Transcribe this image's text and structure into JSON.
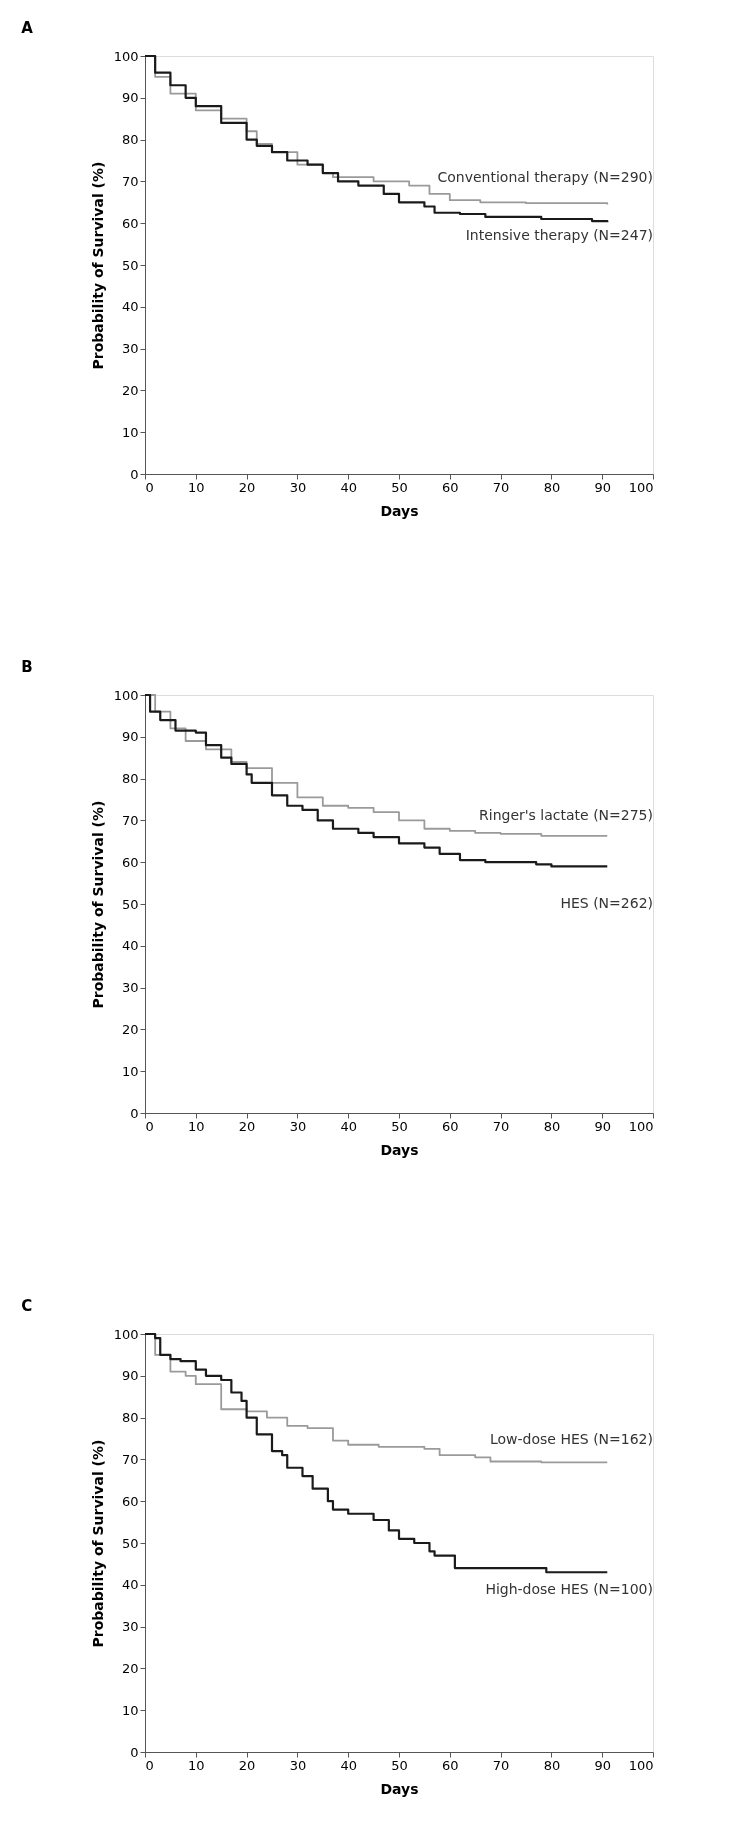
{
  "chart_data": [
    {
      "type": "step",
      "title": "A",
      "xlabel": "Days",
      "ylabel": "Probability of Survival (%)",
      "xlim": [
        0,
        100
      ],
      "ylim": [
        0,
        100
      ],
      "xticks": [
        0,
        10,
        20,
        30,
        40,
        50,
        60,
        70,
        80,
        90,
        100
      ],
      "yticks": [
        0,
        10,
        20,
        30,
        40,
        50,
        60,
        70,
        80,
        90,
        100
      ],
      "grid": false,
      "series": [
        {
          "name": "Conventional therapy (N=290)",
          "color": "#9a9a9a",
          "x": [
            0,
            2,
            5,
            10,
            15,
            20,
            22,
            25,
            30,
            35,
            37,
            45,
            52,
            56,
            60,
            66,
            75,
            91
          ],
          "values": [
            100,
            95,
            91,
            87,
            85,
            82,
            79,
            77,
            74,
            72,
            71,
            70,
            69,
            67,
            65.5,
            65,
            64.8,
            64.5
          ]
        },
        {
          "name": "Intensive therapy (N=247)",
          "color": "#1a1a1a",
          "x": [
            0,
            2,
            5,
            8,
            10,
            15,
            20,
            22,
            25,
            28,
            32,
            35,
            38,
            42,
            47,
            50,
            55,
            57,
            62,
            67,
            78,
            88,
            91
          ],
          "values": [
            100,
            96,
            93,
            90,
            88,
            84,
            80,
            78.5,
            77,
            75,
            74,
            72,
            70,
            69,
            67,
            65,
            64,
            62.5,
            62.2,
            61.5,
            61,
            60.5,
            60.2
          ]
        }
      ]
    },
    {
      "type": "step",
      "title": "B",
      "xlabel": "Days",
      "ylabel": "Probability of Survival (%)",
      "xlim": [
        0,
        100
      ],
      "ylim": [
        0,
        100
      ],
      "xticks": [
        0,
        10,
        20,
        30,
        40,
        50,
        60,
        70,
        80,
        90,
        100
      ],
      "yticks": [
        0,
        10,
        20,
        30,
        40,
        50,
        60,
        70,
        80,
        90,
        100
      ],
      "grid": false,
      "series": [
        {
          "name": "Ringer's lactate (N=275)",
          "color": "#9a9a9a",
          "x": [
            0,
            2,
            5,
            8,
            12,
            17,
            20,
            25,
            30,
            35,
            40,
            45,
            50,
            55,
            60,
            65,
            70,
            78,
            91
          ],
          "values": [
            100,
            96,
            92,
            89,
            87,
            84,
            82.5,
            79,
            75.5,
            73.5,
            73,
            72,
            70,
            68,
            67.5,
            67,
            66.8,
            66.3,
            66.3
          ]
        },
        {
          "name": "HES (N=262)",
          "color": "#1a1a1a",
          "x": [
            0,
            1,
            3,
            6,
            10,
            12,
            15,
            17,
            20,
            21,
            25,
            28,
            31,
            34,
            37,
            42,
            45,
            50,
            55,
            58,
            62,
            67,
            77,
            80,
            91
          ],
          "values": [
            100,
            96,
            94,
            91.5,
            91,
            88,
            85,
            83.5,
            81,
            79,
            76,
            73.5,
            72.5,
            70,
            68,
            67,
            66,
            64.5,
            63.5,
            62,
            60.5,
            60,
            59.5,
            59,
            59
          ]
        }
      ]
    },
    {
      "type": "step",
      "title": "C",
      "xlabel": "Days",
      "ylabel": "Probability of Survival (%)",
      "xlim": [
        0,
        100
      ],
      "ylim": [
        0,
        100
      ],
      "xticks": [
        0,
        10,
        20,
        30,
        40,
        50,
        60,
        70,
        80,
        90,
        100
      ],
      "yticks": [
        0,
        10,
        20,
        30,
        40,
        50,
        60,
        70,
        80,
        90,
        100
      ],
      "grid": false,
      "series": [
        {
          "name": "Low-dose HES (N=162)",
          "color": "#9a9a9a",
          "x": [
            0,
            2,
            5,
            8,
            10,
            15,
            20,
            24,
            28,
            32,
            37,
            40,
            46,
            55,
            58,
            65,
            68,
            78,
            91
          ],
          "values": [
            100,
            95,
            91,
            90,
            88,
            82,
            81.5,
            80,
            78,
            77.5,
            74.5,
            73.5,
            73,
            72.5,
            71,
            70.5,
            69.5,
            69.3,
            69.3
          ]
        },
        {
          "name": "High-dose HES (N=100)",
          "color": "#1a1a1a",
          "x": [
            0,
            2,
            3,
            5,
            7,
            10,
            12,
            15,
            17,
            19,
            20,
            22,
            25,
            27,
            28,
            31,
            33,
            36,
            37,
            40,
            45,
            48,
            50,
            53,
            56,
            57,
            61,
            70,
            79,
            91
          ],
          "values": [
            100,
            99,
            95,
            94,
            93.5,
            91.5,
            90,
            89,
            86,
            84,
            80,
            76,
            72,
            71,
            68,
            66,
            63,
            60,
            58,
            57,
            55.5,
            53,
            51,
            50,
            48,
            47,
            44,
            44,
            43,
            43
          ]
        }
      ]
    }
  ]
}
